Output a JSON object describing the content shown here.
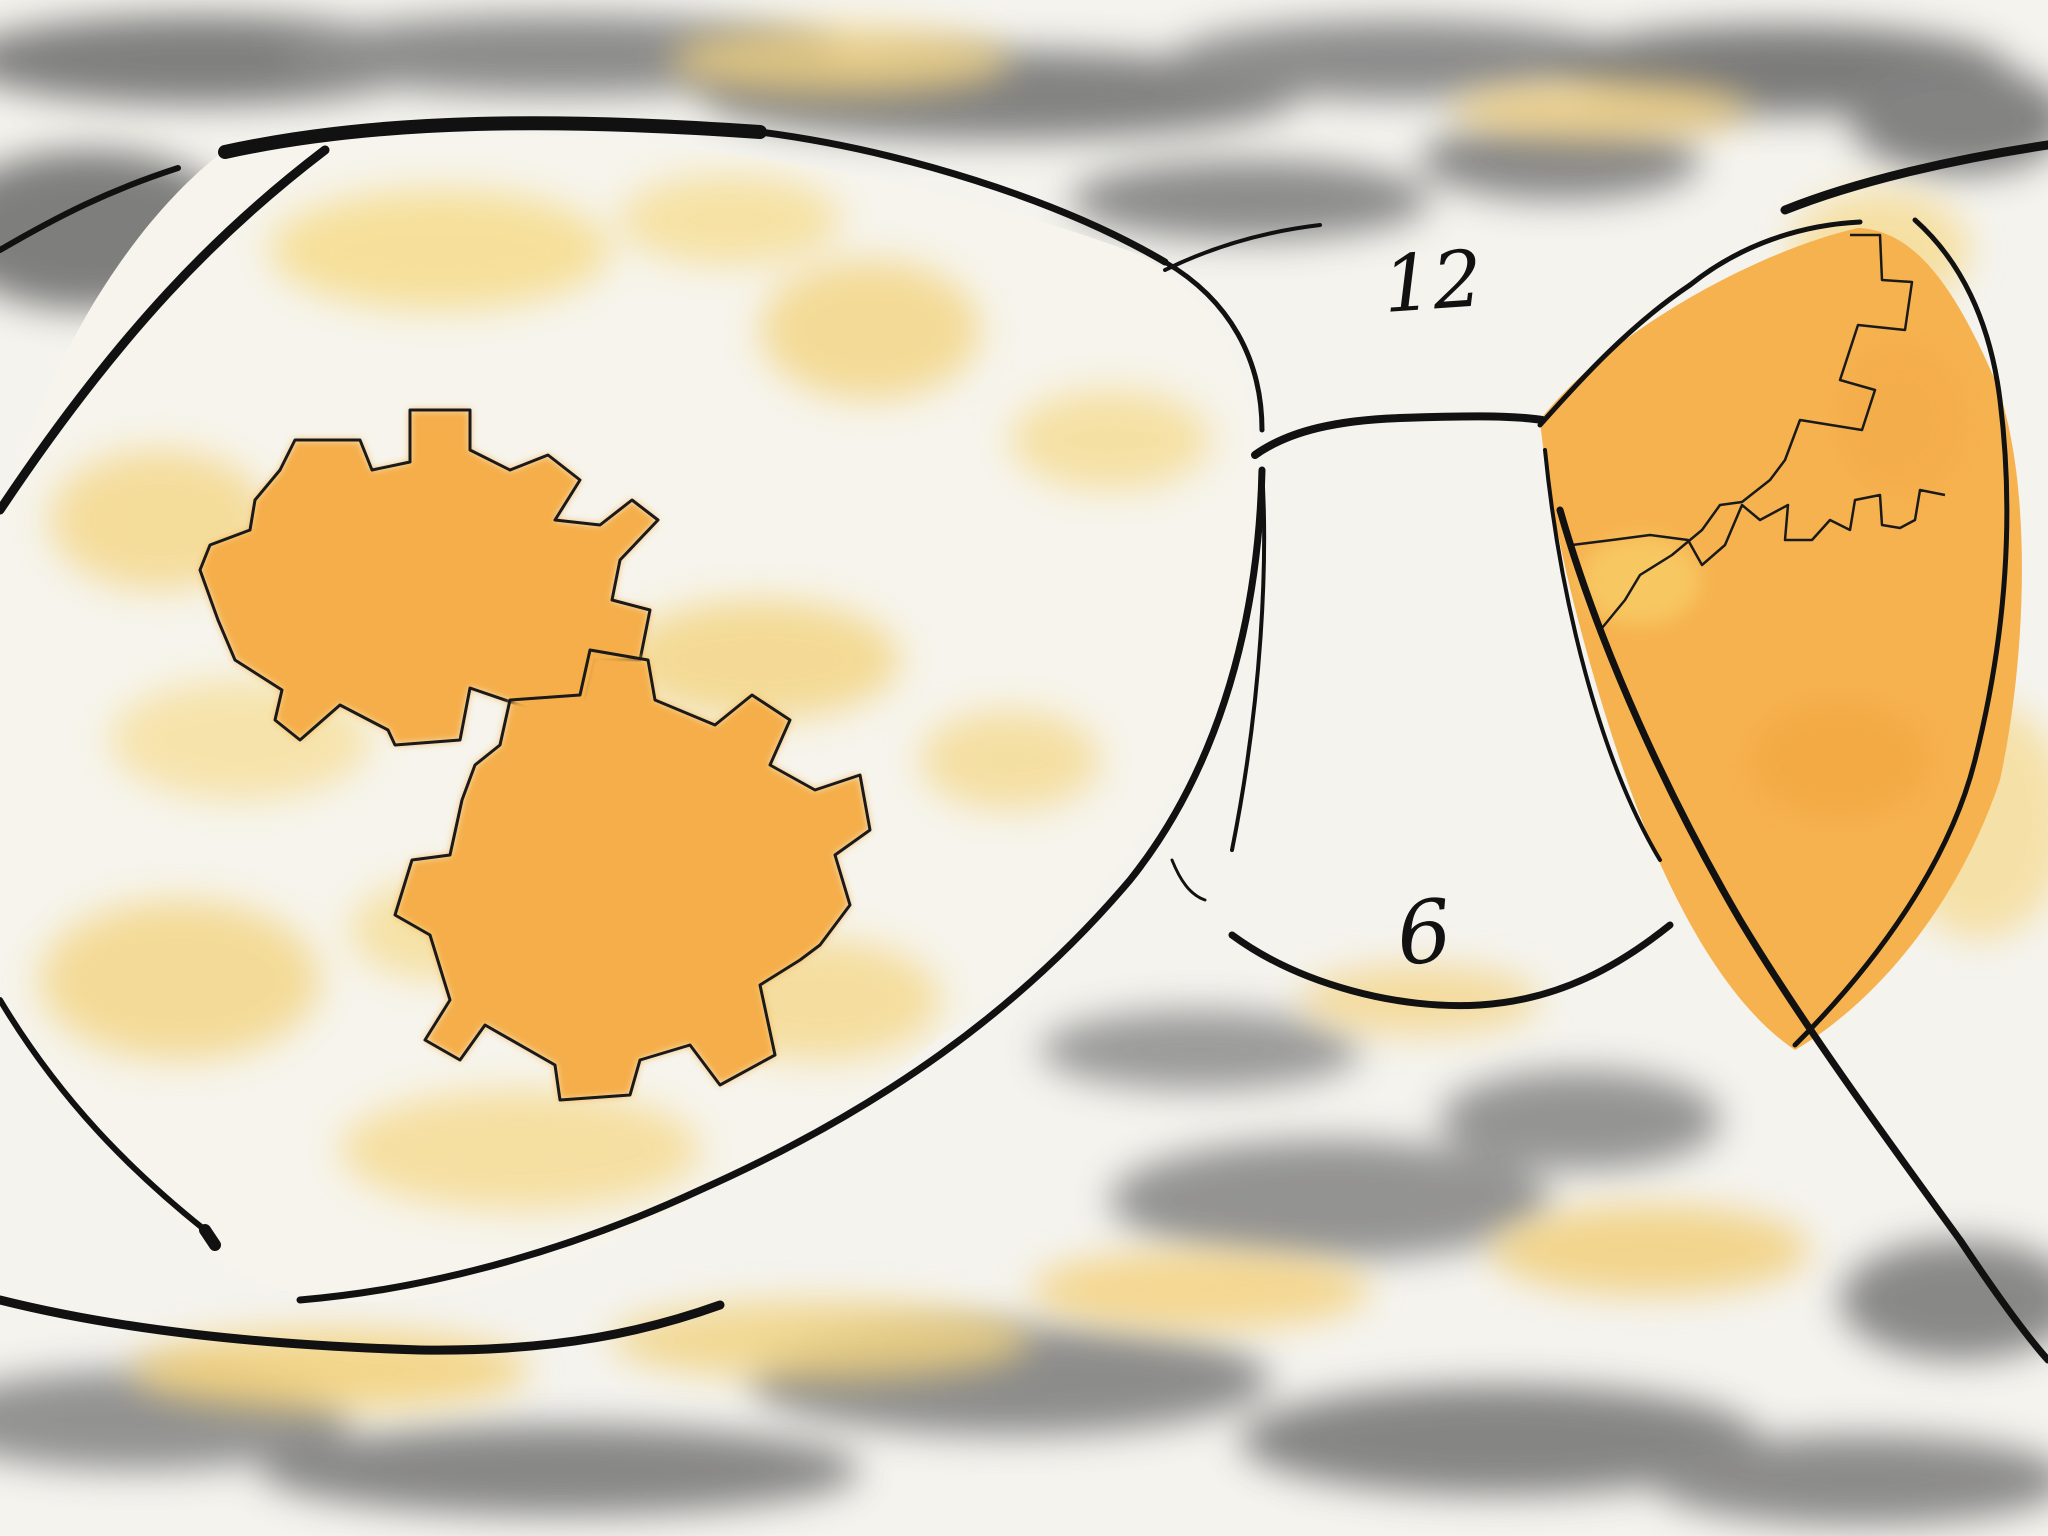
{
  "clock_face": {
    "top_numeral": "12",
    "bottom_numeral": "6"
  },
  "colors": {
    "paper": "#f4f3ee",
    "ink": "#111111",
    "gear_orange": "#f6b24f",
    "watercolor_yellow": "#f7d779",
    "watercolor_gray": "#6f6f6f"
  }
}
